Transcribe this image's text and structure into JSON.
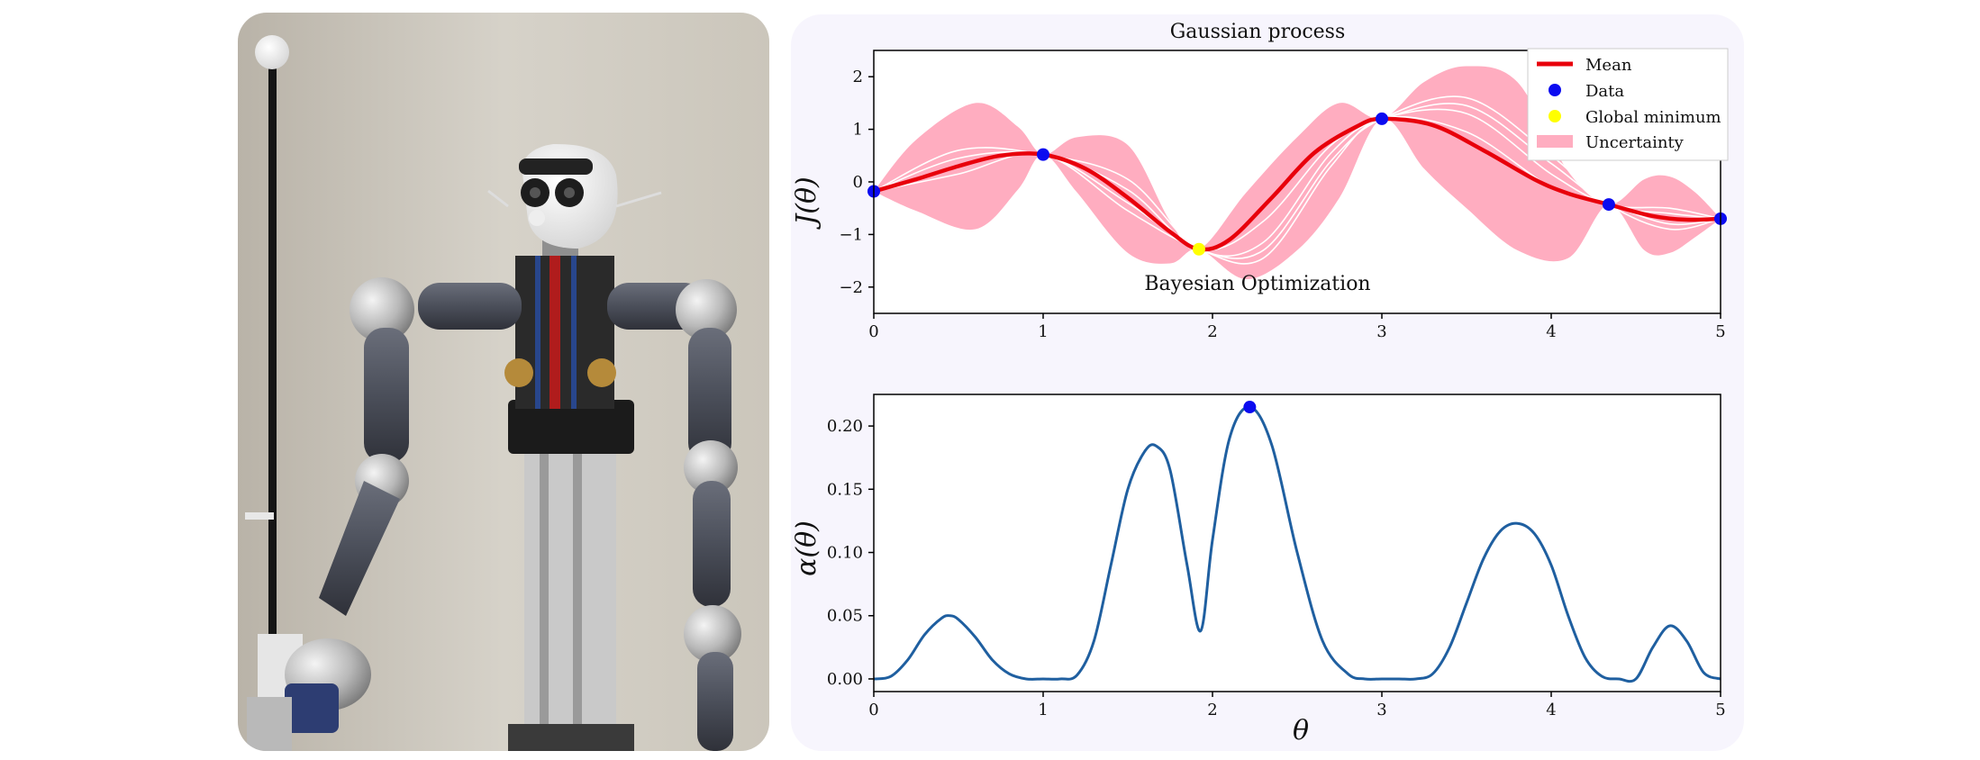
{
  "chart_data": [
    {
      "type": "line",
      "title": "Gaussian process",
      "xlabel": "",
      "ylabel": "J(θ)",
      "xlim": [
        0,
        5
      ],
      "ylim": [
        -2.5,
        2.5
      ],
      "xticks": [
        "0",
        "1",
        "2",
        "3",
        "4",
        "5"
      ],
      "yticks": [
        "−2",
        "−1",
        "0",
        "1",
        "2"
      ],
      "grid": false,
      "legend_position": "top-right",
      "legend": [
        "Mean",
        "Data",
        "Global minimum",
        "Uncertainty"
      ],
      "colors": {
        "mean": "#e8000b",
        "data": "#0b0bf0",
        "minimum": "#ffff00",
        "uncertainty": "#ffadc0",
        "samples": "#ffffff"
      },
      "mean": {
        "x": [
          0,
          0.25,
          0.5,
          0.75,
          1.0,
          1.25,
          1.5,
          1.75,
          1.92,
          2.1,
          2.35,
          2.6,
          2.85,
          3.0,
          3.3,
          3.6,
          3.9,
          4.1,
          4.34,
          4.6,
          4.8,
          5.0
        ],
        "y": [
          -0.18,
          0.05,
          0.3,
          0.5,
          0.52,
          0.25,
          -0.3,
          -0.95,
          -1.28,
          -1.1,
          -0.3,
          0.55,
          1.05,
          1.2,
          1.08,
          0.6,
          0.05,
          -0.22,
          -0.43,
          -0.65,
          -0.72,
          -0.7
        ]
      },
      "uncertainty_band": {
        "x": [
          0,
          0.25,
          0.6,
          0.85,
          1.0,
          1.2,
          1.5,
          1.75,
          1.92,
          2.2,
          2.5,
          2.75,
          3.0,
          3.25,
          3.5,
          3.8,
          4.1,
          4.34,
          4.55,
          4.7,
          4.85,
          5.0
        ],
        "upper": [
          -0.18,
          0.8,
          1.5,
          1.05,
          0.52,
          0.85,
          0.7,
          -0.75,
          -1.28,
          -0.2,
          0.85,
          1.5,
          1.2,
          1.9,
          2.2,
          1.9,
          0.2,
          -0.43,
          0.05,
          0.1,
          -0.2,
          -0.7
        ],
        "lower": [
          -0.18,
          -0.55,
          -0.9,
          -0.15,
          0.52,
          -0.2,
          -1.35,
          -1.55,
          -1.28,
          -1.85,
          -1.3,
          -0.3,
          1.2,
          0.25,
          -0.5,
          -1.3,
          -1.45,
          -0.43,
          -1.3,
          -1.35,
          -1.05,
          -0.7
        ]
      },
      "samples": [
        {
          "x": [
            0,
            0.5,
            1.0,
            1.5,
            1.92,
            2.3,
            2.7,
            3.0,
            3.5,
            4.0,
            4.34,
            4.7,
            5.0
          ],
          "y": [
            -0.18,
            0.45,
            0.52,
            -0.15,
            -1.28,
            -0.75,
            0.7,
            1.2,
            1.45,
            0.35,
            -0.43,
            -0.6,
            -0.7
          ]
        },
        {
          "x": [
            0,
            0.5,
            1.0,
            1.5,
            1.92,
            2.3,
            2.7,
            3.0,
            3.5,
            4.0,
            4.34,
            4.7,
            5.0
          ],
          "y": [
            -0.18,
            0.15,
            0.52,
            -0.55,
            -1.28,
            -1.45,
            0.3,
            1.2,
            0.95,
            -0.1,
            -0.43,
            -0.8,
            -0.7
          ]
        },
        {
          "x": [
            0,
            0.5,
            1.0,
            1.5,
            1.92,
            2.3,
            2.7,
            3.0,
            3.5,
            4.0,
            4.34,
            4.7,
            5.0
          ],
          "y": [
            -0.18,
            0.6,
            0.52,
            0.05,
            -1.28,
            -1.15,
            0.55,
            1.2,
            1.3,
            0.15,
            -0.43,
            -0.5,
            -0.7
          ]
        },
        {
          "x": [
            0,
            0.5,
            1.0,
            1.5,
            1.92,
            2.3,
            2.7,
            3.0,
            3.5,
            4.0,
            4.34,
            4.7,
            5.0
          ],
          "y": [
            -0.18,
            0.3,
            0.52,
            -0.4,
            -1.28,
            -1.3,
            0.4,
            1.2,
            1.6,
            0.5,
            -0.43,
            -0.9,
            -0.7
          ]
        }
      ],
      "data_points": {
        "x": [
          0,
          1.0,
          3.0,
          4.34,
          5.0
        ],
        "y": [
          -0.18,
          0.52,
          1.2,
          -0.43,
          -0.7
        ]
      },
      "global_minimum": {
        "x": 1.92,
        "y": -1.28
      }
    },
    {
      "type": "line",
      "title": "Bayesian Optimization",
      "xlabel": "θ",
      "ylabel": "α(θ)",
      "xlim": [
        0,
        5
      ],
      "ylim": [
        -0.01,
        0.225
      ],
      "xticks": [
        "0",
        "1",
        "2",
        "3",
        "4",
        "5"
      ],
      "yticks": [
        "0.00",
        "0.05",
        "0.10",
        "0.15",
        "0.20"
      ],
      "grid": false,
      "colors": {
        "line": "#1f5fa0",
        "marker": "#0b0bf0"
      },
      "series": [
        {
          "x": [
            0,
            0.1,
            0.2,
            0.3,
            0.4,
            0.45,
            0.5,
            0.6,
            0.7,
            0.8,
            0.9,
            1.0,
            1.1,
            1.2,
            1.3,
            1.4,
            1.5,
            1.6,
            1.67,
            1.75,
            1.85,
            1.93,
            2.0,
            2.1,
            2.22,
            2.35,
            2.5,
            2.65,
            2.8,
            2.9,
            3.0,
            3.1,
            3.2,
            3.3,
            3.4,
            3.5,
            3.6,
            3.7,
            3.8,
            3.9,
            4.0,
            4.1,
            4.2,
            4.3,
            4.4,
            4.5,
            4.6,
            4.7,
            4.8,
            4.9,
            5.0
          ],
          "y": [
            0.0,
            0.002,
            0.015,
            0.035,
            0.048,
            0.05,
            0.047,
            0.033,
            0.015,
            0.004,
            0.0,
            0.0,
            0.0,
            0.003,
            0.03,
            0.09,
            0.15,
            0.18,
            0.184,
            0.165,
            0.09,
            0.038,
            0.11,
            0.19,
            0.215,
            0.185,
            0.1,
            0.03,
            0.004,
            0.0,
            0.0,
            0.0,
            0.0,
            0.004,
            0.025,
            0.06,
            0.095,
            0.117,
            0.123,
            0.115,
            0.09,
            0.05,
            0.017,
            0.002,
            0.0,
            0.0,
            0.025,
            0.042,
            0.03,
            0.005,
            0.0
          ]
        }
      ],
      "maximum": {
        "x": 2.22,
        "y": 0.215
      }
    }
  ]
}
